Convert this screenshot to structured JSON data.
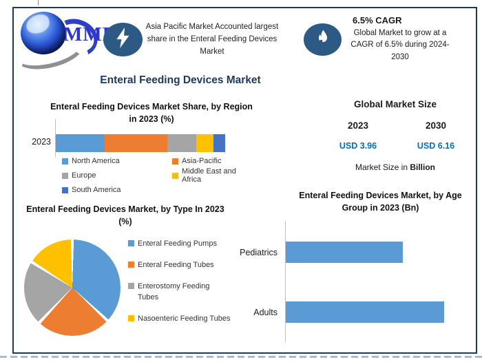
{
  "meta": {
    "border_color": "#1c3a54",
    "accent_blue": "#0070c0",
    "navy_title": "#1f3864",
    "icon_bg": "#2c5a85",
    "bar_blue": "#5b9bd5",
    "dashed_line_color": "#9fbedc"
  },
  "logo": {
    "text": "MMR"
  },
  "header": {
    "highlight_text": "Asia Pacific Market Accounted largest share in the Enteral Feeding Devices Market",
    "cagr_title": "6.5% CAGR",
    "cagr_text": "Global Market to grow at a CAGR of 6.5% during 2024-2030"
  },
  "main_title": "Enteral Feeding Devices Market",
  "market_size": {
    "title": "Global Market Size",
    "years": [
      "2023",
      "2030"
    ],
    "values": [
      "USD 3.96",
      "USD 6.16"
    ],
    "note_plain": "Market Size in ",
    "note_bold": "Billion"
  },
  "chart_data": [
    {
      "id": "region_share",
      "type": "bar",
      "stacked": true,
      "orientation": "horizontal",
      "title": "Enteral Feeding Devices Market Share, by Region in 2023 (%)",
      "categories": [
        "2023"
      ],
      "series": [
        {
          "name": "North America",
          "values": [
            29
          ],
          "color": "#5b9bd5"
        },
        {
          "name": "Asia-Pacific",
          "values": [
            37
          ],
          "color": "#ed7d31"
        },
        {
          "name": "Europe",
          "values": [
            17
          ],
          "color": "#a5a5a5"
        },
        {
          "name": "Middle East and Africa",
          "values": [
            10
          ],
          "color": "#ffc000"
        },
        {
          "name": "South America",
          "values": [
            7
          ],
          "color": "#4472c4"
        }
      ],
      "xlim": [
        0,
        100
      ],
      "unit": "%",
      "legend_position": "bottom",
      "grid": false
    },
    {
      "id": "type_share",
      "type": "pie",
      "title": "Enteral Feeding Devices Market, by Type In 2023 (%)",
      "labels": [
        "Enteral Feeding Pumps",
        "Enteral Feeding Tubes",
        "Enterostomy Feeding Tubes",
        "Nasoenteric Feeding Tubes"
      ],
      "values": [
        37,
        25,
        22,
        16
      ],
      "colors": [
        "#5b9bd5",
        "#ed7d31",
        "#a5a5a5",
        "#ffc000"
      ],
      "start_angle_deg": 0,
      "direction": "clockwise",
      "legend_position": "right",
      "unit": "%"
    },
    {
      "id": "age_group",
      "type": "bar",
      "orientation": "horizontal",
      "title": "Enteral Feeding Devices Market, by Age Group in 2023 (Bn)",
      "categories": [
        "Pediatrics",
        "Adults"
      ],
      "values": [
        1.7,
        2.3
      ],
      "color": "#5b9bd5",
      "xlim": [
        0,
        2.5
      ],
      "unit": "Bn",
      "grid": false,
      "value_labels_shown": false
    }
  ]
}
